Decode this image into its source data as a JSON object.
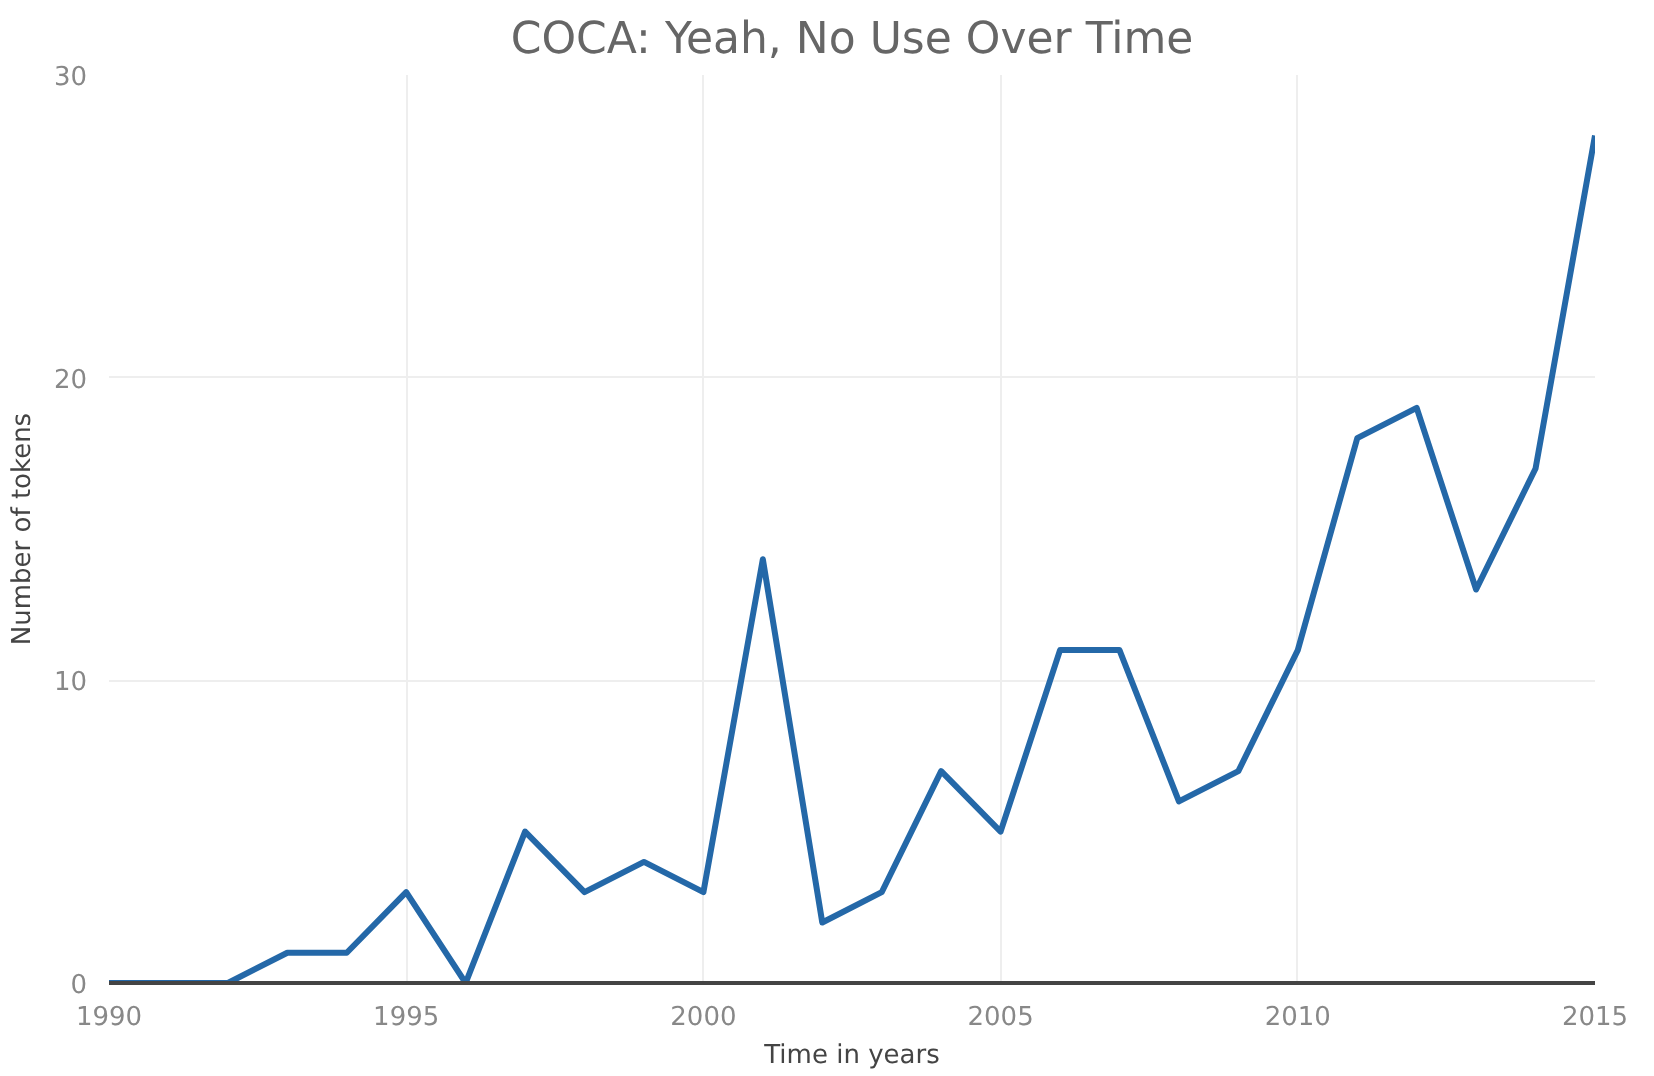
{
  "chart_data": {
    "type": "line",
    "title": "COCA: Yeah, No Use Over Time",
    "xlabel": "Time in years",
    "ylabel": "Number of tokens",
    "x": [
      1990,
      1991,
      1992,
      1993,
      1994,
      1995,
      1996,
      1997,
      1998,
      1999,
      2000,
      2001,
      2002,
      2003,
      2004,
      2005,
      2006,
      2007,
      2008,
      2009,
      2010,
      2011,
      2012,
      2013,
      2014,
      2015
    ],
    "series": [
      {
        "color": "#2468a8",
        "values": [
          0,
          0,
          0,
          1,
          1,
          3,
          0,
          5,
          3,
          4,
          3,
          14,
          2,
          3,
          7,
          5,
          11,
          11,
          6,
          7,
          11,
          18,
          19,
          13,
          17,
          28
        ]
      }
    ],
    "xlim": [
      1990,
      2015
    ],
    "ylim": [
      0,
      30
    ],
    "xticks": [
      1990,
      1995,
      2000,
      2005,
      2010,
      2015
    ],
    "yticks": [
      0,
      10,
      20,
      30
    ],
    "grid": true
  }
}
